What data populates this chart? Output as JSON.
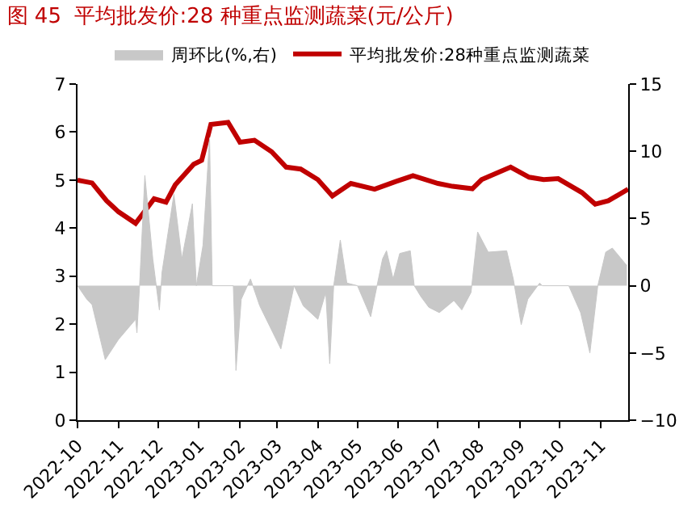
{
  "chart_data": {
    "type": "line",
    "title": "图 45  平均批发价:28 种重点监测蔬菜(元/公斤)",
    "xlim": [
      "2022-10-01",
      "2023-11-22"
    ],
    "xticks": [
      {
        "value": "2022-10-01",
        "label": "2022-10"
      },
      {
        "value": "2022-11-01",
        "label": "2022-11"
      },
      {
        "value": "2022-12-01",
        "label": "2022-12"
      },
      {
        "value": "2023-01-01",
        "label": "2023-01"
      },
      {
        "value": "2023-02-01",
        "label": "2023-02"
      },
      {
        "value": "2023-03-01",
        "label": "2023-03"
      },
      {
        "value": "2023-04-01",
        "label": "2023-04"
      },
      {
        "value": "2023-05-01",
        "label": "2023-05"
      },
      {
        "value": "2023-06-01",
        "label": "2023-06"
      },
      {
        "value": "2023-07-01",
        "label": "2023-07"
      },
      {
        "value": "2023-08-01",
        "label": "2023-08"
      },
      {
        "value": "2023-09-01",
        "label": "2023-09"
      },
      {
        "value": "2023-10-01",
        "label": "2023-10"
      },
      {
        "value": "2023-11-01",
        "label": "2023-11"
      }
    ],
    "ylim": [
      0,
      7
    ],
    "yticks": [
      0,
      1,
      2,
      3,
      4,
      5,
      6,
      7
    ],
    "y2lim": [
      -10,
      15
    ],
    "y2ticks": [
      -10,
      -5,
      0,
      5,
      10,
      15
    ],
    "legend": "top",
    "series": [
      {
        "name": "周环比(%,右)",
        "type": "area",
        "axis": "y2",
        "color": "#c8c8c8",
        "x": [
          "2022-10-01",
          "2022-10-08",
          "2022-10-12",
          "2022-10-22",
          "2022-11-01",
          "2022-11-14",
          "2022-11-15",
          "2022-11-17",
          "2022-11-21",
          "2022-11-27",
          "2022-12-02",
          "2022-12-04",
          "2022-12-13",
          "2022-12-19",
          "2022-12-27",
          "2022-12-30",
          "2023-01-04",
          "2023-01-09",
          "2023-01-11",
          "2023-01-27",
          "2023-01-29",
          "2023-02-02",
          "2023-02-09",
          "2023-02-16",
          "2023-03-04",
          "2023-03-14",
          "2023-03-21",
          "2023-04-01",
          "2023-04-07",
          "2023-04-10",
          "2023-04-13",
          "2023-04-18",
          "2023-04-23",
          "2023-05-01",
          "2023-05-11",
          "2023-05-20",
          "2023-05-23",
          "2023-05-28",
          "2023-06-02",
          "2023-06-10",
          "2023-06-13",
          "2023-06-18",
          "2023-06-24",
          "2023-07-02",
          "2023-07-13",
          "2023-07-19",
          "2023-07-26",
          "2023-07-31",
          "2023-08-08",
          "2023-08-22",
          "2023-08-27",
          "2023-09-02",
          "2023-09-07",
          "2023-09-16",
          "2023-09-18",
          "2023-10-08",
          "2023-10-17",
          "2023-10-24",
          "2023-10-30",
          "2023-11-05",
          "2023-11-10",
          "2023-11-21"
        ],
        "values": [
          0,
          -1,
          -1.4,
          -5.5,
          -4,
          -2.5,
          -3.5,
          0,
          8.2,
          2,
          -1.8,
          1,
          6.8,
          2,
          6.1,
          0,
          3,
          11,
          0,
          0,
          -6.3,
          -1,
          0.5,
          -1.5,
          -4.7,
          0,
          -1.5,
          -2.5,
          -0.5,
          -5.8,
          0,
          3.4,
          0.2,
          0,
          -2.3,
          2,
          2.6,
          0.5,
          2.4,
          2.6,
          0,
          -0.8,
          -1.6,
          -2,
          -1.1,
          -1.8,
          -0.5,
          4,
          2.5,
          2.6,
          0.5,
          -2.9,
          -1,
          0.2,
          0,
          0,
          -2,
          -5,
          0,
          2.5,
          2.8,
          1.5
        ]
      },
      {
        "name": "平均批发价:28种重点监测蔬菜",
        "color": "#c00000",
        "x": [
          "2022-10-01",
          "2022-10-12",
          "2022-10-23",
          "2022-11-01",
          "2022-11-14",
          "2022-11-28",
          "2022-12-07",
          "2022-12-14",
          "2022-12-28",
          "2023-01-03",
          "2023-01-10",
          "2023-01-23",
          "2023-02-01",
          "2023-02-12",
          "2023-02-25",
          "2023-03-08",
          "2023-03-19",
          "2023-04-01",
          "2023-04-12",
          "2023-04-26",
          "2023-05-14",
          "2023-05-30",
          "2023-06-12",
          "2023-07-01",
          "2023-07-12",
          "2023-07-27",
          "2023-08-03",
          "2023-08-14",
          "2023-08-25",
          "2023-09-08",
          "2023-09-19",
          "2023-09-30",
          "2023-10-18",
          "2023-10-28",
          "2023-11-07",
          "2023-11-22"
        ],
        "values": [
          5.0,
          4.94,
          4.57,
          4.34,
          4.1,
          4.61,
          4.54,
          4.9,
          5.33,
          5.41,
          6.16,
          6.2,
          5.79,
          5.83,
          5.59,
          5.27,
          5.23,
          5.01,
          4.67,
          4.93,
          4.81,
          4.97,
          5.09,
          4.93,
          4.87,
          4.82,
          5.01,
          5.14,
          5.27,
          5.06,
          5.01,
          5.03,
          4.74,
          4.5,
          4.57,
          4.81
        ]
      }
    ]
  }
}
